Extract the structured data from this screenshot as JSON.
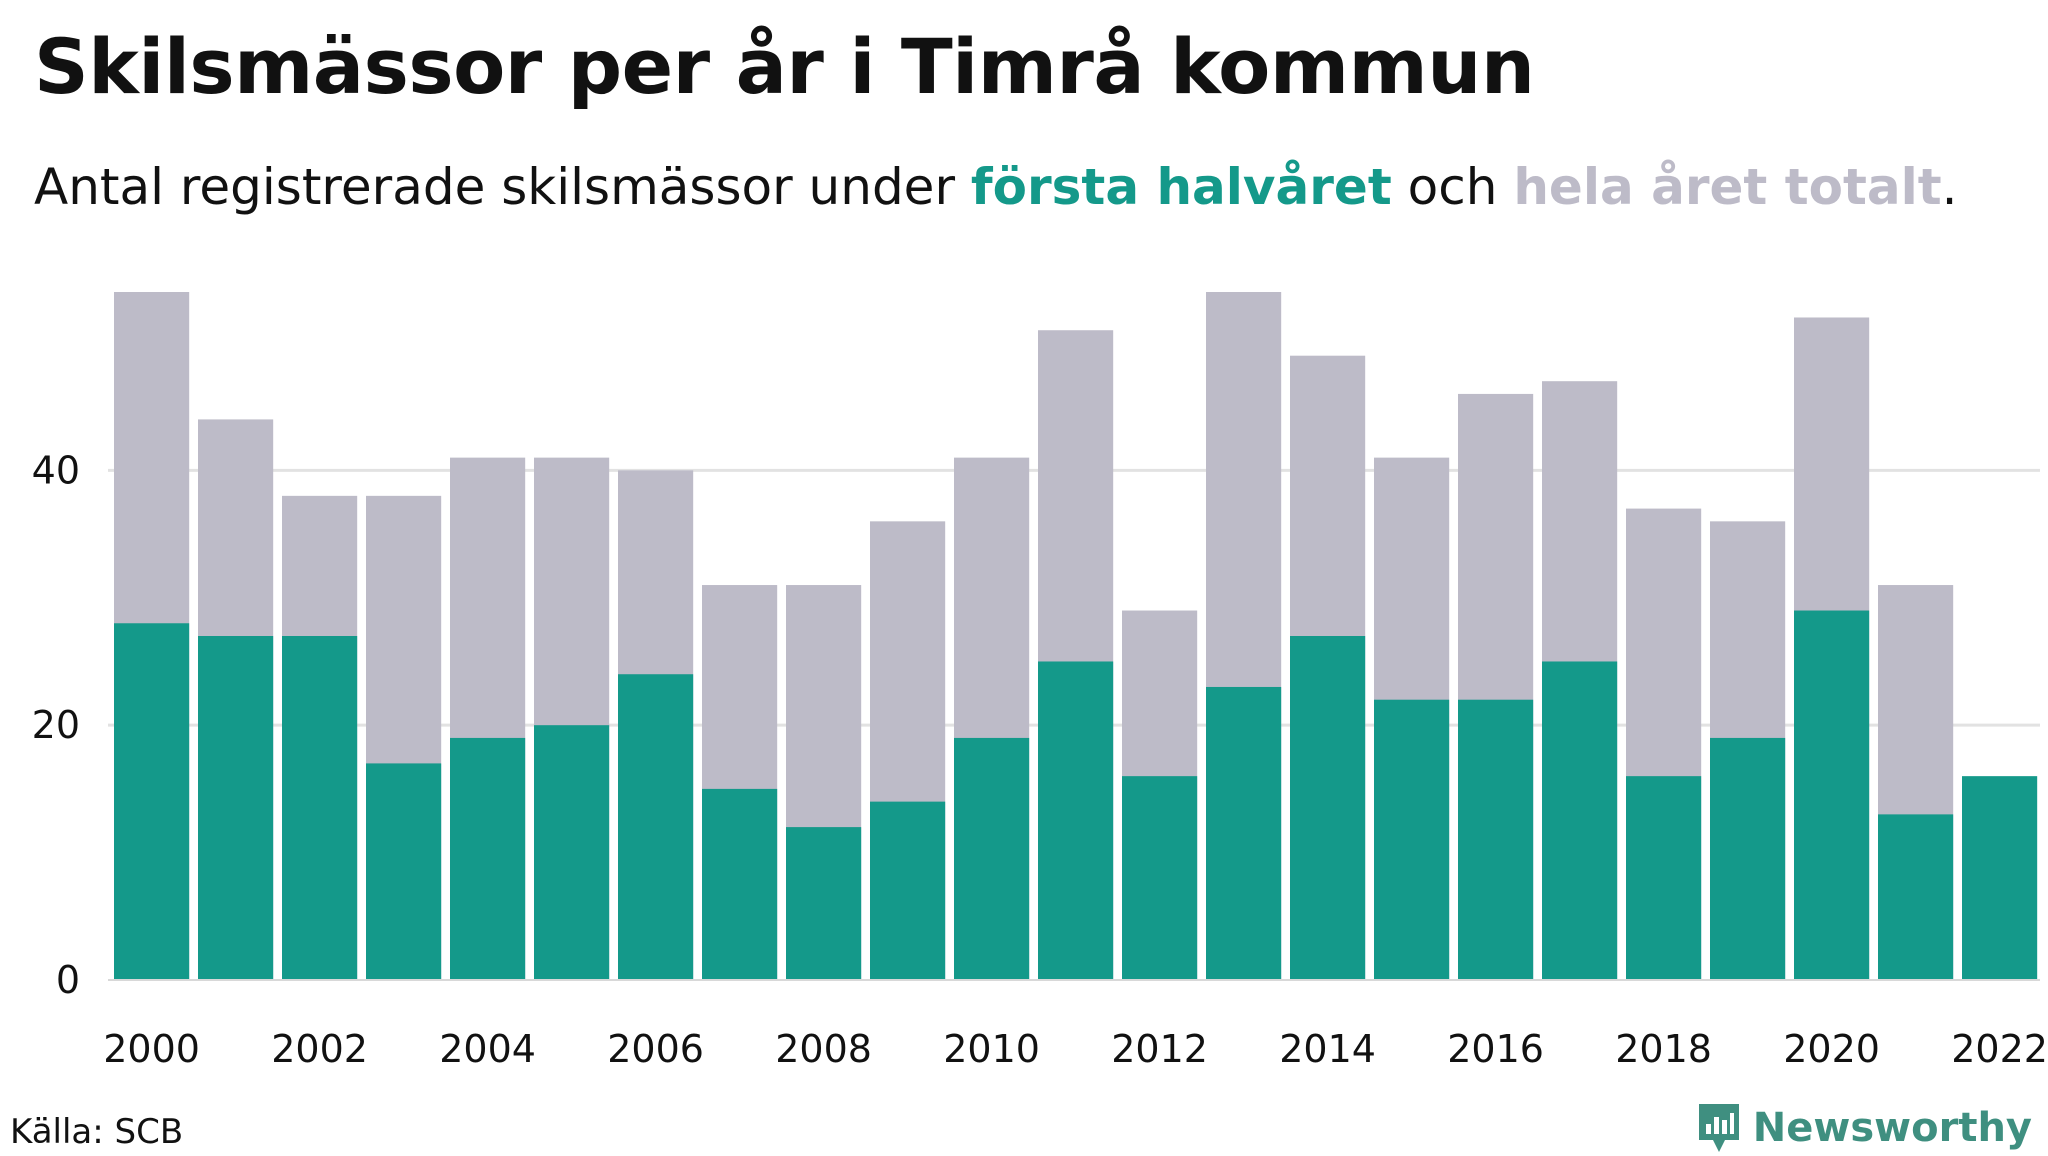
{
  "header": {
    "title": "Skilsmässor per år i Timrå kommun",
    "subtitle_prefix": "Antal registrerade skilsmässor under ",
    "subtitle_first": "första halvåret",
    "subtitle_mid": " och ",
    "subtitle_total": "hela året totalt",
    "subtitle_suffix": "."
  },
  "colors": {
    "first_half": "#14998a",
    "full_year": "#bdbbc8",
    "grid": "#e2e2e2",
    "brand": "#3f8f80"
  },
  "chart_data": {
    "type": "bar",
    "stacking": "overlay",
    "categories": [
      "2000",
      "2001",
      "2002",
      "2003",
      "2004",
      "2005",
      "2006",
      "2007",
      "2008",
      "2009",
      "2010",
      "2011",
      "2012",
      "2013",
      "2014",
      "2015",
      "2016",
      "2017",
      "2018",
      "2019",
      "2020",
      "2021",
      "2022"
    ],
    "series": [
      {
        "values": [
          54,
          44,
          38,
          38,
          41,
          41,
          40,
          31,
          31,
          36,
          41,
          51,
          29,
          54,
          49,
          41,
          46,
          47,
          37,
          36,
          52,
          31,
          null
        ]
      },
      {
        "values": [
          28,
          27,
          27,
          17,
          19,
          20,
          24,
          15,
          12,
          14,
          19,
          25,
          16,
          23,
          27,
          22,
          22,
          25,
          16,
          19,
          29,
          13,
          16
        ]
      }
    ],
    "x_tick_labels": [
      "2000",
      "2002",
      "2004",
      "2006",
      "2008",
      "2010",
      "2012",
      "2014",
      "2016",
      "2018",
      "2020",
      "2022"
    ],
    "y_ticks": [
      0,
      20,
      40
    ],
    "ylim": [
      0,
      54
    ],
    "grid": "horizontal"
  },
  "footer": {
    "source": "Källa: SCB",
    "brand": "Newsworthy",
    "brand_icon": "newsworthy-logo-icon"
  }
}
